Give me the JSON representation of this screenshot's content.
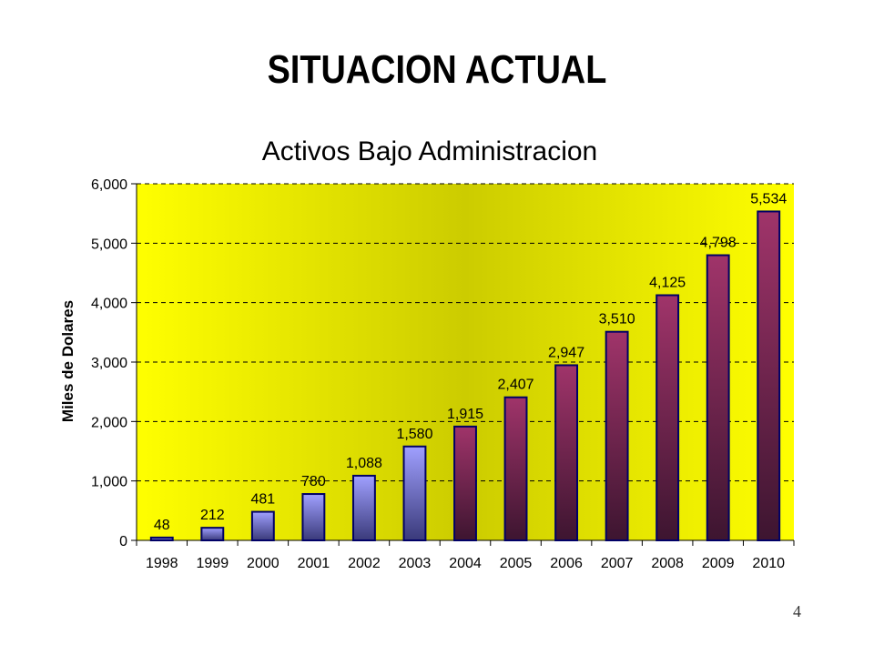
{
  "slide": {
    "title": "SITUACION ACTUAL",
    "page_number": "4"
  },
  "colors": {
    "plot_light": "#ffff00",
    "plot_dark": "#cccc00",
    "bar_blue_top": "#a0a0ff",
    "bar_blue_bottom": "#3a3a7a",
    "bar_maroon_top": "#a0346a",
    "bar_maroon_bottom": "#3d1530",
    "bar_border": "#000066",
    "grid": "#000000"
  },
  "chart_data": {
    "type": "bar",
    "title": "Activos Bajo Administracion",
    "xlabel": "",
    "ylabel": "Miles de Dolares",
    "ylim": [
      0,
      6000
    ],
    "yticks": [
      0,
      1000,
      2000,
      3000,
      4000,
      5000,
      6000
    ],
    "ytick_labels": [
      "0",
      "1,000",
      "2,000",
      "3,000",
      "4,000",
      "5,000",
      "6,000"
    ],
    "grid": "horizontal dashed",
    "legend": "none",
    "categories": [
      "1998",
      "1999",
      "2000",
      "2001",
      "2002",
      "2003",
      "2004",
      "2005",
      "2006",
      "2007",
      "2008",
      "2009",
      "2010"
    ],
    "values": [
      48,
      212,
      481,
      780,
      1088,
      1580,
      1915,
      2407,
      2947,
      3510,
      4125,
      4798,
      5534
    ],
    "value_labels": [
      "48",
      "212",
      "481",
      "780",
      "1,088",
      "1,580",
      "1,915",
      "2,407",
      "2,947",
      "3,510",
      "4,125",
      "4,798",
      "5,534"
    ],
    "bar_styles": [
      "blue",
      "blue",
      "blue",
      "blue",
      "blue",
      "blue",
      "maroon",
      "maroon",
      "maroon",
      "maroon",
      "maroon",
      "maroon",
      "maroon"
    ]
  }
}
